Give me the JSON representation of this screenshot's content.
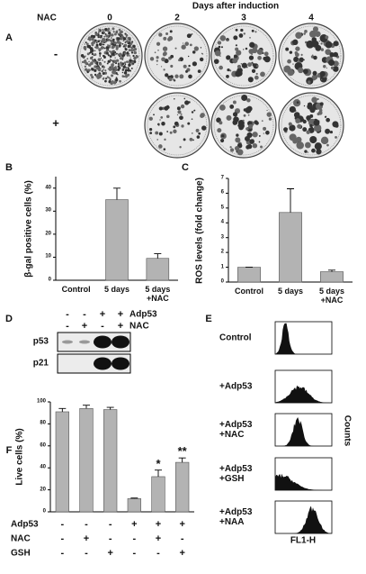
{
  "figure": {
    "panel_a": {
      "label": "A",
      "nac_label": "NAC",
      "title": "Days after induction",
      "days": [
        "0",
        "2",
        "3",
        "4"
      ],
      "rows": [
        "-",
        "+"
      ]
    },
    "panel_d": {
      "label": "D",
      "header": [
        {
          "name": "Adp53",
          "signs": [
            "-",
            "-",
            "+",
            "+"
          ]
        },
        {
          "name": "NAC",
          "signs": [
            "-",
            "+",
            "-",
            "+"
          ]
        }
      ],
      "rows": [
        "p53",
        "p21"
      ]
    },
    "panel_e": {
      "label": "E",
      "conditions": [
        "Control",
        "+Adp53",
        "+Adp53\n+NAC",
        "+Adp53\n+GSH",
        "+Adp53\n+NAA"
      ],
      "y_label": "Counts",
      "x_label": "FL1-H"
    }
  },
  "chart_data": [
    {
      "panel": "B",
      "type": "bar",
      "ylabel": "β-gal positive cells (%)",
      "categories": [
        "Control",
        "5 days",
        "5 days\n+NAC"
      ],
      "values": [
        0,
        35,
        9.5
      ],
      "errors": [
        0,
        5,
        2
      ],
      "color": "#b3b3b3",
      "ylim": [
        0,
        45
      ],
      "yticks": [
        0,
        10,
        20,
        30,
        40
      ]
    },
    {
      "panel": "C",
      "type": "bar",
      "ylabel": "ROS levels (fold change)",
      "categories": [
        "Control",
        "5 days",
        "5 days\n+NAC"
      ],
      "values": [
        1,
        4.7,
        0.7
      ],
      "errors": [
        0,
        1.6,
        0.1
      ],
      "color": "#b3b3b3",
      "ylim": [
        0,
        7
      ],
      "yticks": [
        0,
        1,
        2,
        3,
        4,
        5,
        6,
        7
      ]
    },
    {
      "panel": "F",
      "type": "bar",
      "ylabel": "Live cells (%)",
      "values": [
        91,
        94,
        93,
        12,
        32,
        45
      ],
      "errors": [
        3,
        3,
        2,
        0.5,
        6,
        4
      ],
      "significance": [
        null,
        null,
        null,
        null,
        "*",
        "**"
      ],
      "color": "#b3b3b3",
      "ylim": [
        0,
        100
      ],
      "yticks": [
        0,
        20,
        40,
        60,
        80,
        100
      ],
      "treatments": [
        {
          "name": "Adp53",
          "signs": [
            "-",
            "-",
            "-",
            "+",
            "+",
            "+"
          ]
        },
        {
          "name": "NAC",
          "signs": [
            "-",
            "+",
            "-",
            "-",
            "+",
            "-"
          ]
        },
        {
          "name": "GSH",
          "signs": [
            "-",
            "-",
            "+",
            "-",
            "-",
            "+"
          ]
        }
      ]
    }
  ]
}
